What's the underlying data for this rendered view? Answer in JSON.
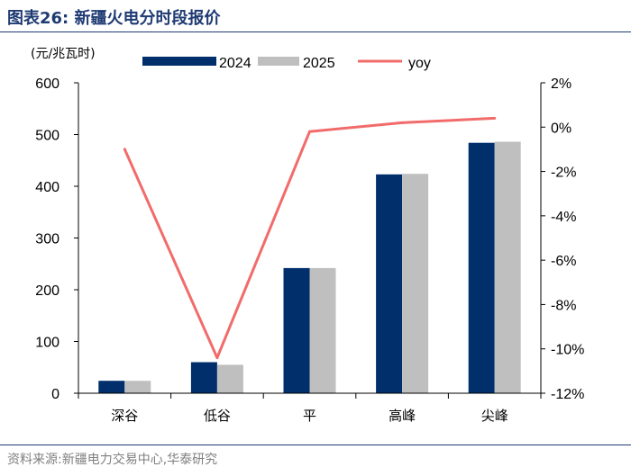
{
  "figure": {
    "title": "图表26:  新疆火电分时段报价",
    "source": "资料来源:新疆电力交易中心,华泰研究"
  },
  "colors": {
    "series_2024": "#002f6c",
    "series_2025": "#bfbfbf",
    "yoy": "#f26b6b",
    "title": "#1f3b73"
  },
  "chart_data": {
    "type": "bar",
    "title": "新疆火电分时段报价",
    "ylabel": "(元/兆瓦时)",
    "xlabel": "",
    "categories": [
      "深谷",
      "低谷",
      "平",
      "高峰",
      "尖峰"
    ],
    "series": [
      {
        "name": "2024",
        "type": "bar",
        "axis": "left",
        "values": [
          24,
          60,
          242,
          423,
          484
        ]
      },
      {
        "name": "2025",
        "type": "bar",
        "axis": "left",
        "values": [
          24,
          55,
          242,
          424,
          486
        ]
      },
      {
        "name": "yoy",
        "type": "line",
        "axis": "right",
        "values": [
          -1.0,
          -10.4,
          -0.2,
          0.2,
          0.4
        ]
      }
    ],
    "ylim": [
      0,
      600
    ],
    "yticks": [
      0,
      100,
      200,
      300,
      400,
      500,
      600
    ],
    "y2lim": [
      -12,
      2
    ],
    "y2ticks": [
      -12,
      -10,
      -8,
      -6,
      -4,
      -2,
      0,
      2
    ],
    "y2ticklabels": [
      "-12%",
      "-10%",
      "-8%",
      "-6%",
      "-4%",
      "-2%",
      "0%",
      "2%"
    ],
    "legend": [
      "2024",
      "2025",
      "yoy"
    ],
    "legend_position": "top",
    "grid": false
  }
}
